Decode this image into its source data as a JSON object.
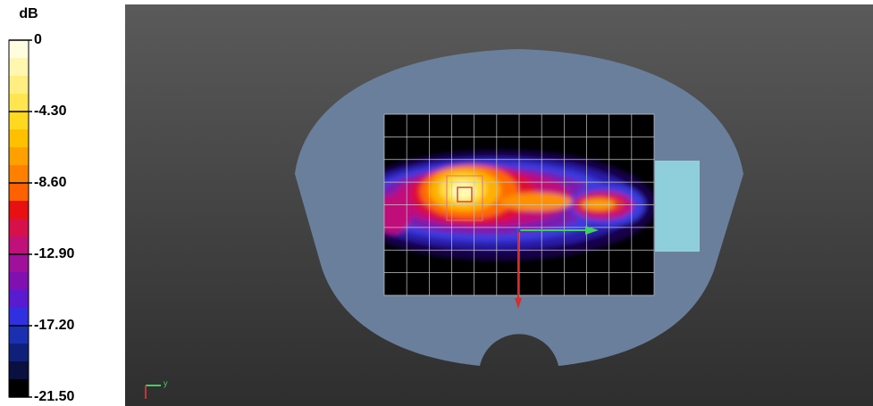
{
  "colorbar": {
    "unit": "dB",
    "labels": [
      "0",
      "-4.30",
      "-8.60",
      "-12.90",
      "-17.20",
      "-21.50"
    ]
  },
  "axes_indicator": {
    "label": "y"
  }
}
